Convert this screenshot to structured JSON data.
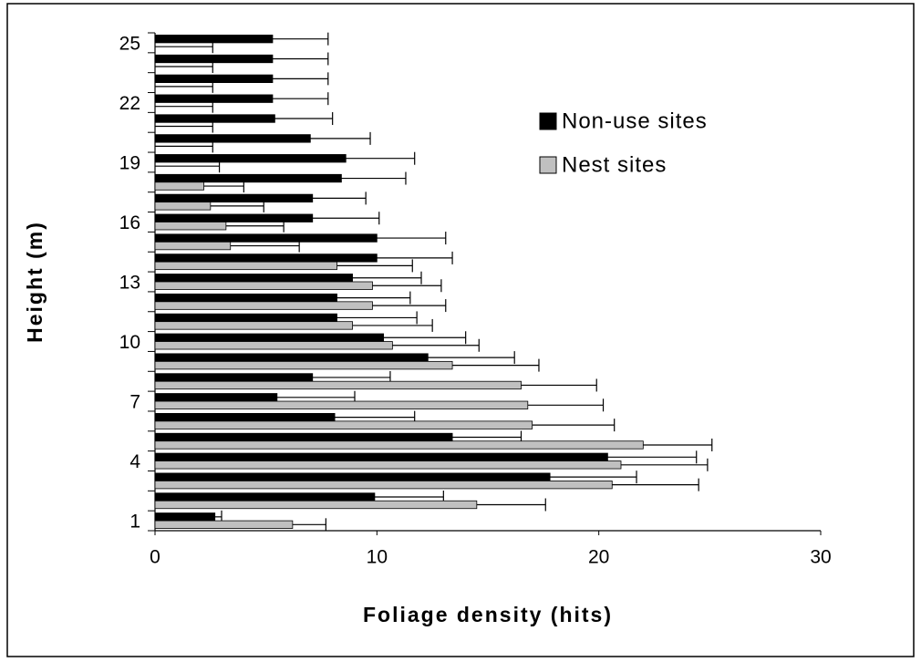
{
  "chart_data": {
    "type": "bar",
    "orientation": "horizontal",
    "x_label": "Foliage density (hits)",
    "y_label": "Height (m)",
    "categories": [
      "1",
      null,
      null,
      "4",
      null,
      null,
      "7",
      null,
      null,
      "10",
      null,
      null,
      "13",
      null,
      null,
      "16",
      null,
      null,
      "19",
      null,
      null,
      "22",
      null,
      null,
      "25"
    ],
    "series": [
      {
        "name": "Non-use sites",
        "color": "#000000",
        "values": [
          2.7,
          9.9,
          17.8,
          20.4,
          13.4,
          8.1,
          5.5,
          7.1,
          12.3,
          10.3,
          8.2,
          8.2,
          8.9,
          10.0,
          10.0,
          7.1,
          7.1,
          8.4,
          8.6,
          7.0,
          5.4,
          5.3,
          5.3,
          5.3,
          5.3
        ],
        "errors": [
          0.3,
          3.1,
          3.9,
          4.0,
          3.1,
          3.6,
          3.5,
          3.5,
          3.9,
          3.7,
          3.6,
          3.3,
          3.1,
          3.4,
          3.1,
          3.0,
          2.4,
          2.9,
          3.1,
          2.7,
          2.6,
          2.5,
          2.5,
          2.5,
          2.5
        ]
      },
      {
        "name": "Nest sites",
        "color": "#c0c0c0",
        "values": [
          6.2,
          14.5,
          20.6,
          21.0,
          22.0,
          17.0,
          16.8,
          16.5,
          13.4,
          10.7,
          8.9,
          9.8,
          9.8,
          8.2,
          3.4,
          3.2,
          2.5,
          2.2,
          0,
          0,
          0,
          0,
          0,
          0,
          0
        ],
        "errors": [
          1.5,
          3.1,
          3.9,
          3.9,
          3.1,
          3.7,
          3.4,
          3.4,
          3.9,
          3.9,
          3.6,
          3.3,
          3.1,
          3.4,
          3.1,
          2.6,
          2.4,
          1.8,
          2.9,
          2.6,
          2.6,
          2.6,
          2.6,
          2.6,
          2.6
        ]
      }
    ],
    "xlim": [
      0,
      30
    ],
    "xticks": [
      0,
      10,
      20,
      30
    ],
    "grid": false,
    "legend_position": "upper right"
  }
}
